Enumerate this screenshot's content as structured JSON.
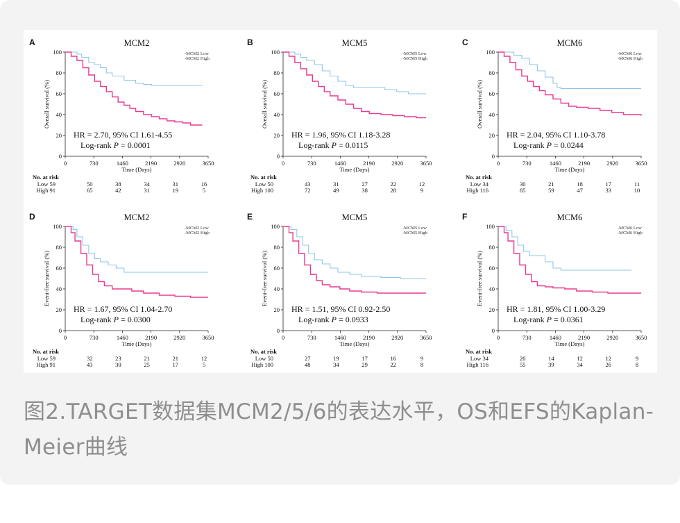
{
  "caption": "图2.TARGET数据集MCM2/5/6的表达水平，OS和EFS的Kaplan-Meier曲线",
  "colors": {
    "low": "#8ec5ea",
    "high": "#ea3a8e",
    "axis": "#222222"
  },
  "chart_data": [
    {
      "type": "line",
      "panel": "A",
      "title": "MCM2",
      "ylabel": "Overall survival (%)",
      "xlabel": "Time (Days)",
      "xticks": [
        "0",
        "730",
        "1460",
        "2190",
        "2920",
        "3650"
      ],
      "yticks": [
        "0",
        "20",
        "40",
        "60",
        "80",
        "100"
      ],
      "xlim": [
        0,
        3650
      ],
      "ylim": [
        0,
        100
      ],
      "legend": [
        "MCM2 Low",
        "MCM2 High"
      ],
      "hr": "HR = 2.70, 95% CI 1.61-4.55",
      "logrank_prefix": "Log-rank ",
      "p_symbol": "P",
      "p_text": " = 0.0001",
      "risk_title": "No. at risk",
      "risk_labels": [
        "Low 59",
        "High 91"
      ],
      "risk_low": [
        "50",
        "38",
        "34",
        "31",
        "16"
      ],
      "risk_high": [
        "65",
        "42",
        "31",
        "19",
        "5"
      ],
      "series": [
        {
          "name": "MCM2 Low",
          "x": [
            0,
            300,
            420,
            600,
            750,
            900,
            1050,
            1200,
            1500,
            1800,
            2000,
            2200,
            2500,
            3000,
            3500
          ],
          "y": [
            100,
            98,
            95,
            90,
            88,
            85,
            80,
            77,
            73,
            70,
            69,
            68,
            68,
            68,
            68
          ]
        },
        {
          "name": "MCM2 High",
          "x": [
            0,
            150,
            300,
            450,
            600,
            750,
            900,
            1050,
            1200,
            1350,
            1500,
            1650,
            1800,
            2000,
            2200,
            2400,
            2600,
            2800,
            3000,
            3200,
            3500
          ],
          "y": [
            100,
            96,
            92,
            85,
            78,
            72,
            67,
            62,
            57,
            52,
            49,
            46,
            43,
            40,
            38,
            36,
            34,
            33,
            32,
            30,
            30
          ]
        }
      ]
    },
    {
      "type": "line",
      "panel": "B",
      "title": "MCM5",
      "ylabel": "Overall survival (%)",
      "xlabel": "Time (Days)",
      "xticks": [
        "0",
        "730",
        "1460",
        "2190",
        "2920",
        "3650"
      ],
      "yticks": [
        "0",
        "20",
        "40",
        "60",
        "80",
        "100"
      ],
      "xlim": [
        0,
        3650
      ],
      "ylim": [
        0,
        100
      ],
      "legend": [
        "MCM5 Low",
        "MCM5 High"
      ],
      "hr": "HR = 1.96, 95% CI 1.18-3.28",
      "logrank_prefix": "Log-rank ",
      "p_symbol": "P",
      "p_text": " = 0.0115",
      "risk_title": "No. at risk",
      "risk_labels": [
        "Low 50",
        "High 100"
      ],
      "risk_low": [
        "43",
        "31",
        "27",
        "22",
        "12"
      ],
      "risk_high": [
        "72",
        "49",
        "38",
        "28",
        "9"
      ],
      "series": [
        {
          "name": "MCM5 Low",
          "x": [
            0,
            300,
            450,
            600,
            800,
            1000,
            1200,
            1400,
            1600,
            1800,
            2200,
            2600,
            2900,
            3200,
            3650
          ],
          "y": [
            100,
            98,
            95,
            92,
            88,
            82,
            77,
            72,
            68,
            66,
            66,
            64,
            62,
            60,
            60
          ]
        },
        {
          "name": "MCM5 High",
          "x": [
            0,
            150,
            300,
            450,
            600,
            750,
            900,
            1050,
            1200,
            1400,
            1600,
            1800,
            2000,
            2200,
            2500,
            2800,
            3100,
            3400,
            3650
          ],
          "y": [
            100,
            96,
            90,
            84,
            78,
            72,
            67,
            62,
            58,
            54,
            50,
            46,
            43,
            41,
            40,
            39,
            38,
            37,
            37
          ]
        }
      ]
    },
    {
      "type": "line",
      "panel": "C",
      "title": "MCM6",
      "ylabel": "Overall survival (%)",
      "xlabel": "Time (Days)",
      "xticks": [
        "0",
        "730",
        "1460",
        "2190",
        "2920",
        "3650"
      ],
      "yticks": [
        "0",
        "20",
        "40",
        "60",
        "80",
        "100"
      ],
      "xlim": [
        0,
        3650
      ],
      "ylim": [
        0,
        100
      ],
      "legend": [
        "MCM6 Low",
        "MCM6 High"
      ],
      "hr": "HR = 2.04, 95% CI 1.10-3.78",
      "logrank_prefix": "Log-rank ",
      "p_symbol": "P",
      "p_text": " = 0.0244",
      "risk_title": "No. at risk",
      "risk_labels": [
        "Low 34",
        "High 116"
      ],
      "risk_low": [
        "30",
        "21",
        "18",
        "17",
        "11"
      ],
      "risk_high": [
        "85",
        "59",
        "47",
        "33",
        "10"
      ],
      "series": [
        {
          "name": "MCM6 Low",
          "x": [
            0,
            400,
            600,
            800,
            1000,
            1200,
            1400,
            1500,
            1600,
            2000,
            2500,
            3000,
            3650
          ],
          "y": [
            100,
            97,
            94,
            88,
            82,
            76,
            70,
            66,
            65,
            65,
            65,
            65,
            65
          ]
        },
        {
          "name": "MCM6 High",
          "x": [
            0,
            150,
            300,
            450,
            600,
            750,
            900,
            1050,
            1200,
            1400,
            1600,
            1800,
            2000,
            2300,
            2600,
            2900,
            3200,
            3650
          ],
          "y": [
            100,
            96,
            90,
            83,
            77,
            72,
            67,
            63,
            59,
            55,
            51,
            48,
            47,
            46,
            44,
            42,
            40,
            39
          ]
        }
      ]
    },
    {
      "type": "line",
      "panel": "D",
      "title": "MCM2",
      "ylabel": "Event-free survival (%)",
      "xlabel": "Time (Days)",
      "xticks": [
        "0",
        "730",
        "1460",
        "2190",
        "2920",
        "3650"
      ],
      "yticks": [
        "0",
        "20",
        "40",
        "60",
        "80",
        "100"
      ],
      "xlim": [
        0,
        3650
      ],
      "ylim": [
        0,
        100
      ],
      "legend": [
        "MCM2 Low",
        "MCM2 High"
      ],
      "hr": "HR = 1.67, 95% CI 1.04-2.70",
      "logrank_prefix": "Log-rank ",
      "p_symbol": "P",
      "p_text": " = 0.0300",
      "risk_title": "No. at risk",
      "risk_labels": [
        "Low 59",
        "High 91"
      ],
      "risk_low": [
        "32",
        "23",
        "21",
        "21",
        "12"
      ],
      "risk_high": [
        "43",
        "30",
        "25",
        "17",
        "5"
      ],
      "series": [
        {
          "name": "MCM2 Low",
          "x": [
            0,
            200,
            300,
            450,
            600,
            750,
            900,
            1100,
            1300,
            1500,
            2000,
            2500,
            3000,
            3650
          ],
          "y": [
            100,
            97,
            90,
            82,
            74,
            69,
            66,
            63,
            60,
            56,
            56,
            56,
            56,
            56
          ]
        },
        {
          "name": "MCM2 High",
          "x": [
            0,
            150,
            250,
            400,
            550,
            700,
            850,
            1000,
            1200,
            1400,
            1700,
            2000,
            2400,
            2800,
            3200,
            3650
          ],
          "y": [
            100,
            94,
            86,
            74,
            63,
            54,
            47,
            43,
            40,
            40,
            38,
            36,
            34,
            33,
            32,
            32
          ]
        }
      ]
    },
    {
      "type": "line",
      "panel": "E",
      "title": "MCM5",
      "ylabel": "Event-free survival (%)",
      "xlabel": "Time (Days)",
      "xticks": [
        "0",
        "730",
        "1460",
        "2190",
        "2920",
        "3650"
      ],
      "yticks": [
        "0",
        "20",
        "40",
        "60",
        "80",
        "100"
      ],
      "xlim": [
        0,
        3650
      ],
      "ylim": [
        0,
        100
      ],
      "legend": [
        "MCM5 Low",
        "MCM5 High"
      ],
      "hr": "HR = 1.51, 95% CI 0.92-2.50",
      "logrank_prefix": "Log-rank ",
      "p_symbol": "P",
      "p_text": " = 0.0933",
      "risk_title": "No. at risk",
      "risk_labels": [
        "Low 50",
        "High 100"
      ],
      "risk_low": [
        "27",
        "19",
        "17",
        "16",
        "9"
      ],
      "risk_high": [
        "48",
        "34",
        "29",
        "22",
        "8"
      ],
      "series": [
        {
          "name": "MCM5 Low",
          "x": [
            0,
            200,
            350,
            500,
            650,
            800,
            1000,
            1200,
            1400,
            1700,
            2000,
            2500,
            3000,
            3650
          ],
          "y": [
            100,
            97,
            90,
            82,
            74,
            68,
            64,
            60,
            56,
            54,
            52,
            51,
            50,
            50
          ]
        },
        {
          "name": "MCM5 High",
          "x": [
            0,
            150,
            250,
            400,
            550,
            700,
            850,
            1000,
            1200,
            1450,
            1700,
            2000,
            2400,
            2800,
            3200,
            3650
          ],
          "y": [
            100,
            94,
            86,
            74,
            63,
            54,
            48,
            44,
            42,
            40,
            38,
            37,
            36,
            36,
            36,
            36
          ]
        }
      ]
    },
    {
      "type": "line",
      "panel": "F",
      "title": "MCM6",
      "ylabel": "Event-free survival (%)",
      "xlabel": "Time (Days)",
      "xticks": [
        "0",
        "730",
        "1460",
        "2190",
        "2920",
        "3650"
      ],
      "yticks": [
        "0",
        "20",
        "40",
        "60",
        "80",
        "100"
      ],
      "xlim": [
        0,
        3650
      ],
      "ylim": [
        0,
        100
      ],
      "legend": [
        "MCM6 Low",
        "MCM6 High"
      ],
      "hr": "HR = 1.81, 95% CI 1.00-3.29",
      "logrank_prefix": "Log-rank ",
      "p_symbol": "P",
      "p_text": " = 0.0361",
      "risk_title": "No. at risk",
      "risk_labels": [
        "Low 34",
        "High 116"
      ],
      "risk_low": [
        "20",
        "14",
        "12",
        "12",
        "9"
      ],
      "risk_high": [
        "55",
        "39",
        "34",
        "26",
        "8"
      ],
      "series": [
        {
          "name": "MCM6 Low",
          "x": [
            0,
            200,
            350,
            500,
            650,
            800,
            1000,
            1200,
            1400,
            1600,
            2000,
            2500,
            3000,
            3400
          ],
          "y": [
            100,
            96,
            90,
            82,
            76,
            72,
            72,
            66,
            60,
            58,
            58,
            58,
            58,
            58
          ]
        },
        {
          "name": "MCM6 High",
          "x": [
            0,
            150,
            250,
            400,
            550,
            700,
            850,
            1000,
            1200,
            1400,
            1700,
            2000,
            2400,
            2800,
            3200,
            3650
          ],
          "y": [
            100,
            94,
            86,
            74,
            63,
            54,
            47,
            43,
            42,
            41,
            40,
            38,
            37,
            36,
            36,
            36
          ]
        }
      ]
    }
  ]
}
